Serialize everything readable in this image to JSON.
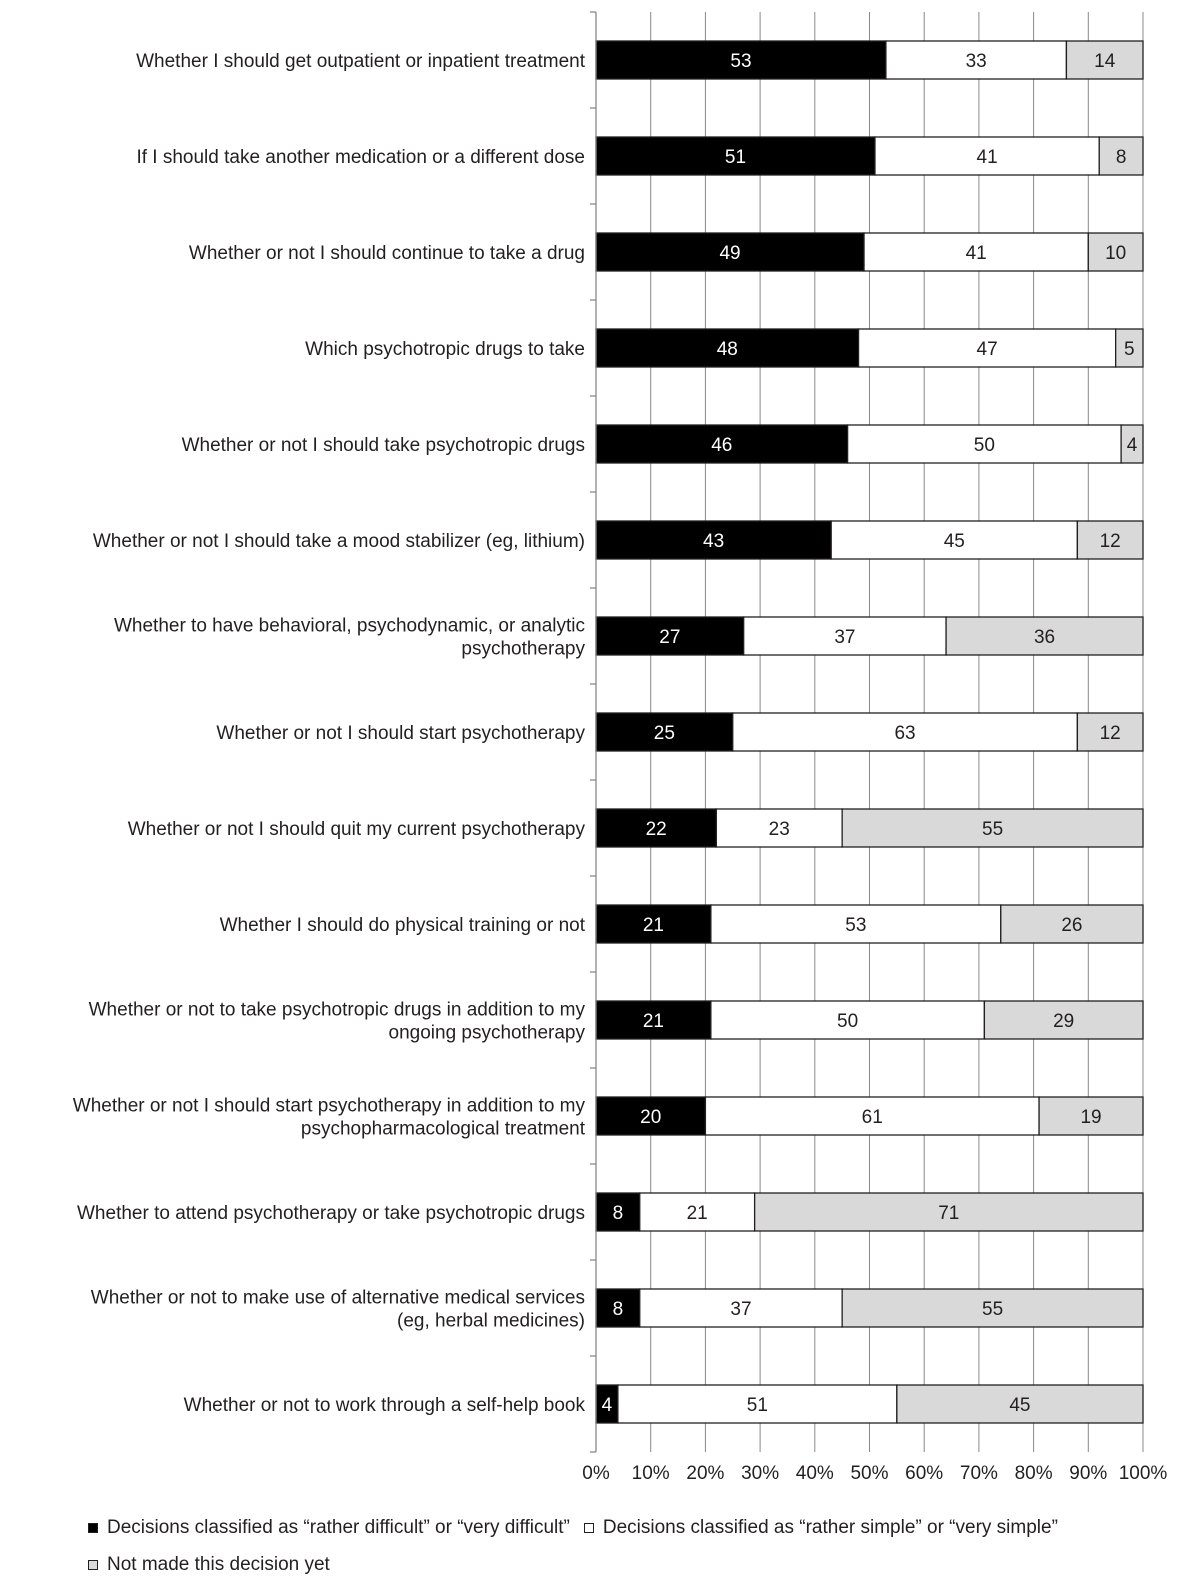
{
  "chart_data": {
    "type": "bar",
    "orientation": "horizontal",
    "stacked": true,
    "categories": [
      "Whether I should get outpatient or inpatient treatment",
      "If I should take another medication or a different dose",
      "Whether or not I should continue to take a drug",
      "Which psychotropic drugs to take",
      "Whether or not I should take psychotropic drugs",
      "Whether or not I should take a mood stabilizer (eg, lithium)",
      "Whether to have behavioral, psychodynamic, or analytic psychotherapy",
      "Whether or not I should start psychotherapy",
      "Whether or not I should quit my current psychotherapy",
      "Whether I should do physical training or not",
      "Whether or not to take psychotropic drugs in addition to my ongoing psychotherapy",
      "Whether or not I should start psychotherapy in addition to my psychopharmacological treatment",
      "Whether to attend psychotherapy or take psychotropic drugs",
      "Whether or not to make use of alternative medical services (eg, herbal medicines)",
      "Whether or not to work through a self-help book"
    ],
    "category_lines": [
      [
        "Whether I should get outpatient or inpatient treatment"
      ],
      [
        "If I should take another medication or a different dose"
      ],
      [
        "Whether or not I should continue to take a drug"
      ],
      [
        "Which psychotropic drugs to take"
      ],
      [
        "Whether or not I should take psychotropic drugs"
      ],
      [
        "Whether or not I should take a mood stabilizer (eg, lithium)"
      ],
      [
        "Whether to have behavioral, psychodynamic, or analytic",
        "psychotherapy"
      ],
      [
        "Whether or not I should start psychotherapy"
      ],
      [
        "Whether or not I should quit my current psychotherapy"
      ],
      [
        "Whether I should do physical training or not"
      ],
      [
        "Whether or not to take psychotropic drugs in addition to my",
        "ongoing psychotherapy"
      ],
      [
        "Whether or not I should start psychotherapy in addition to my",
        "psychopharmacological treatment"
      ],
      [
        "Whether to attend psychotherapy or take psychotropic drugs"
      ],
      [
        "Whether or not to make use of alternative medical services",
        "(eg, herbal medicines)"
      ],
      [
        "Whether or not to work through a self-help book"
      ]
    ],
    "series": [
      {
        "name": "Decisions classified as “rather difficult” or “very difficult”",
        "color": "#000000",
        "label_color": "#ffffff",
        "values": [
          53,
          51,
          49,
          48,
          46,
          43,
          27,
          25,
          22,
          21,
          21,
          20,
          8,
          8,
          4
        ]
      },
      {
        "name": "Decisions classified as “rather simple” or “very simple”",
        "color": "#ffffff",
        "label_color": "#231f20",
        "values": [
          33,
          41,
          41,
          47,
          50,
          45,
          37,
          63,
          23,
          53,
          50,
          61,
          21,
          37,
          51
        ]
      },
      {
        "name": "Not made this decision yet",
        "color": "#d9d9d9",
        "label_color": "#231f20",
        "values": [
          14,
          8,
          10,
          5,
          4,
          12,
          36,
          12,
          55,
          26,
          29,
          19,
          71,
          55,
          45
        ]
      }
    ],
    "xlim": [
      0,
      100
    ],
    "xticks": [
      "0%",
      "10%",
      "20%",
      "30%",
      "40%",
      "50%",
      "60%",
      "70%",
      "80%",
      "90%",
      "100%"
    ],
    "grid": true,
    "legend_position": "bottom",
    "title": "",
    "xlabel": "",
    "ylabel": ""
  }
}
